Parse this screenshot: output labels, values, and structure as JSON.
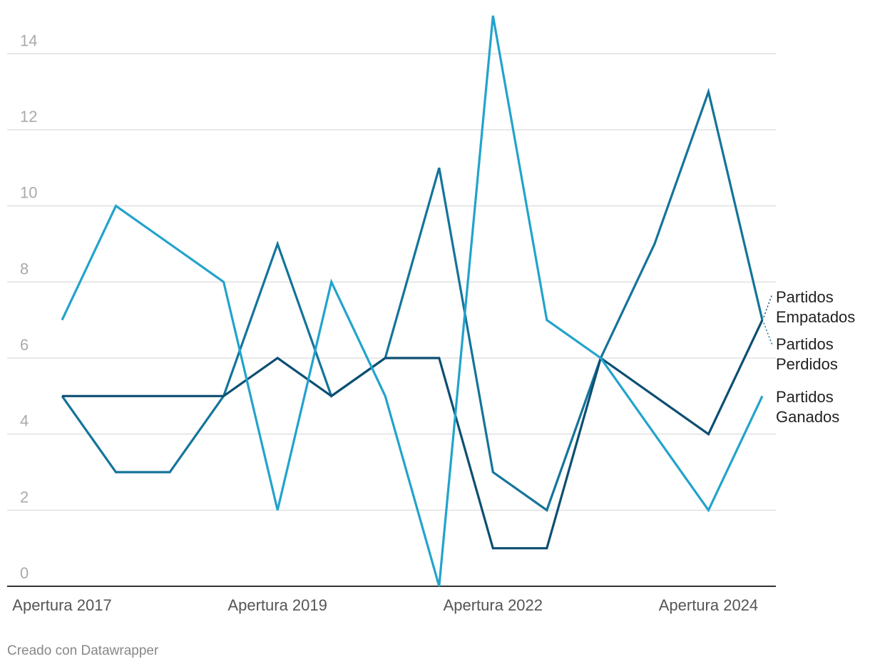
{
  "footer": {
    "credit": "Creado con Datawrapper"
  },
  "chart_data": {
    "type": "line",
    "title": "",
    "xlabel": "",
    "ylabel": "",
    "ylim": [
      0,
      14
    ],
    "yticks": [
      0,
      2,
      4,
      6,
      8,
      10,
      12,
      14
    ],
    "grid": true,
    "legend": "direct-labels-right",
    "categories": [
      "Apertura 2017",
      "",
      "",
      "",
      "Apertura 2019",
      "",
      "",
      "",
      "Apertura 2022",
      "",
      "",
      "",
      "Apertura 2024",
      ""
    ],
    "xtick_labels": [
      {
        "index": 0,
        "label": "Apertura 2017"
      },
      {
        "index": 4,
        "label": "Apertura 2019"
      },
      {
        "index": 8,
        "label": "Apertura 2022"
      },
      {
        "index": 12,
        "label": "Apertura 2024"
      }
    ],
    "series": [
      {
        "name": "Partidos Perdidos",
        "label_lines": [
          "Partidos",
          "Perdidos"
        ],
        "color": "#14749b",
        "values": [
          5,
          3,
          3,
          5,
          9,
          5,
          6,
          11,
          3,
          2,
          6,
          9,
          13,
          7
        ]
      },
      {
        "name": "Partidos Empatados",
        "label_lines": [
          "Partidos",
          "Empatados"
        ],
        "color": "#0c4f72",
        "values": [
          5,
          5,
          5,
          5,
          6,
          5,
          6,
          6,
          1,
          1,
          6,
          5,
          4,
          7
        ]
      },
      {
        "name": "Partidos Ganados",
        "label_lines": [
          "Partidos",
          "Ganados"
        ],
        "color": "#22a3cc",
        "values": [
          7,
          10,
          9,
          8,
          2,
          8,
          5,
          0,
          15,
          7,
          6,
          4,
          2,
          5
        ]
      }
    ]
  }
}
